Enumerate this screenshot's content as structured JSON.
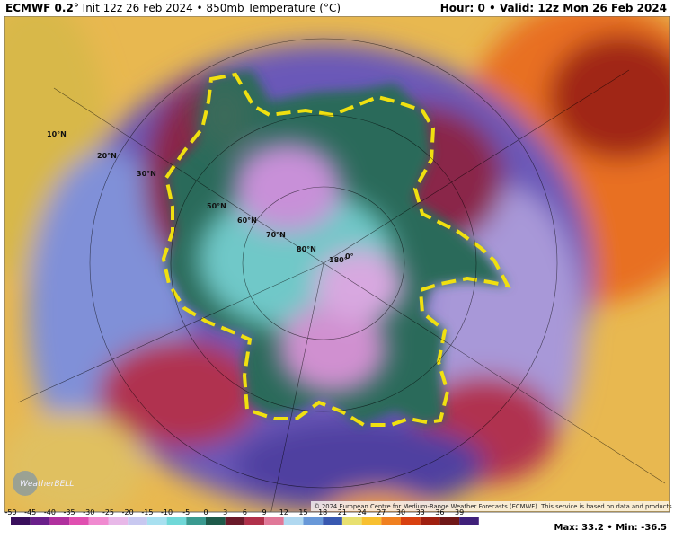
{
  "header": {
    "title": "ECMWF 0.2°",
    "subtitle": "Init 12z 26 Feb 2024 • 850mb Temperature (°C)",
    "valid": "Hour: 0 • Valid: 12z Mon 26 Feb 2024"
  },
  "map": {
    "labels": [
      "10°N",
      "20°N",
      "30°N",
      "50°N",
      "60°N",
      "70°N",
      "80°N",
      "180°",
      "0°"
    ],
    "credit": "© 2024 European Centre for Medium-Range Weather Forecasts (ECMWF). This service is based on data and products of the ECMWF.",
    "logo": "WeatherBELL"
  },
  "legend": {
    "ticks": [
      -50,
      -45,
      -40,
      -35,
      -30,
      -25,
      -20,
      -15,
      -10,
      -5,
      0,
      3,
      6,
      9,
      12,
      15,
      18,
      21,
      24,
      27,
      30,
      33,
      36,
      39
    ],
    "colors": [
      "#3a0f5c",
      "#6a1f8a",
      "#b0309e",
      "#e04fb0",
      "#f08ad0",
      "#e8b8e8",
      "#c8c8f0",
      "#a8e0f0",
      "#70d8d8",
      "#3a9a90",
      "#1e5a4a",
      "#6a1a2a",
      "#b0304a",
      "#e07898",
      "#b0d8f0",
      "#6898d8",
      "#3858b0",
      "#e8e070",
      "#f8c030",
      "#f08020",
      "#d84010",
      "#a02010",
      "#701818",
      "#40207a"
    ]
  },
  "footer": {
    "stats": "Max: 33.2 • Min: -36.5"
  }
}
